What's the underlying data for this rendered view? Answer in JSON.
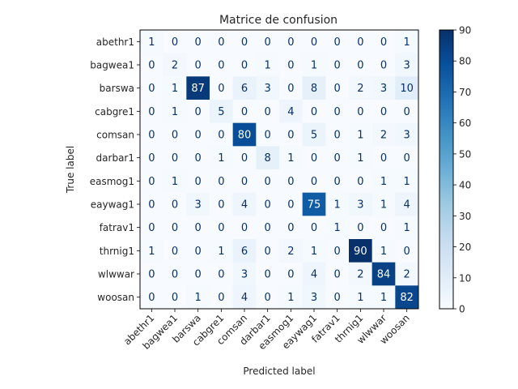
{
  "chart_data": {
    "type": "heatmap",
    "title": "Matrice de confusion",
    "xlabel": "Predicted label",
    "ylabel": "True label",
    "x_categories": [
      "abethr1",
      "bagwea1",
      "barswa",
      "cabgre1",
      "comsan",
      "darbar1",
      "easmog1",
      "eaywag1",
      "fatrav1",
      "thrnig1",
      "wlwwar",
      "woosan"
    ],
    "y_categories": [
      "abethr1",
      "bagwea1",
      "barswa",
      "cabgre1",
      "comsan",
      "darbar1",
      "easmog1",
      "eaywag1",
      "fatrav1",
      "thrnig1",
      "wlwwar",
      "woosan"
    ],
    "values": [
      [
        1,
        0,
        0,
        0,
        0,
        0,
        0,
        0,
        0,
        0,
        0,
        1
      ],
      [
        0,
        2,
        0,
        0,
        0,
        1,
        0,
        1,
        0,
        0,
        0,
        3
      ],
      [
        0,
        1,
        87,
        0,
        6,
        3,
        0,
        8,
        0,
        2,
        3,
        10
      ],
      [
        0,
        1,
        0,
        5,
        0,
        0,
        4,
        0,
        0,
        0,
        0,
        0
      ],
      [
        0,
        0,
        0,
        0,
        80,
        0,
        0,
        5,
        0,
        1,
        2,
        3
      ],
      [
        0,
        0,
        0,
        1,
        0,
        8,
        1,
        0,
        0,
        1,
        0,
        0
      ],
      [
        0,
        1,
        0,
        0,
        0,
        0,
        0,
        0,
        0,
        0,
        1,
        1
      ],
      [
        0,
        0,
        3,
        0,
        4,
        0,
        0,
        75,
        1,
        3,
        1,
        4
      ],
      [
        0,
        0,
        0,
        0,
        0,
        0,
        0,
        0,
        1,
        0,
        0,
        1
      ],
      [
        1,
        0,
        0,
        1,
        6,
        0,
        2,
        1,
        0,
        90,
        1,
        0
      ],
      [
        0,
        0,
        0,
        0,
        3,
        0,
        0,
        4,
        0,
        2,
        84,
        2
      ],
      [
        0,
        0,
        1,
        0,
        4,
        0,
        1,
        3,
        0,
        1,
        1,
        82
      ]
    ],
    "colorbar": {
      "min": 0,
      "max": 90,
      "ticks": [
        0,
        10,
        20,
        30,
        40,
        50,
        60,
        70,
        80,
        90
      ],
      "colormap": "Blues",
      "colors": [
        "#f7fbff",
        "#deebf7",
        "#c6dbef",
        "#9ecae1",
        "#6baed6",
        "#4292c6",
        "#2171b5",
        "#08519c",
        "#08306b"
      ]
    },
    "text_color_light": "#ffffff",
    "text_color_dark": "#08306b"
  }
}
